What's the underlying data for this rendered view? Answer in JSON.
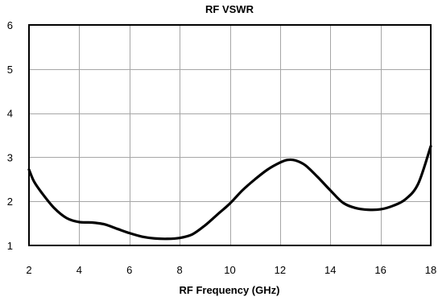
{
  "chart_data": {
    "type": "line",
    "title": "RF VSWR",
    "xlabel": "RF Frequency (GHz)",
    "ylabel": "",
    "xlim": [
      2,
      18
    ],
    "ylim": [
      1,
      6
    ],
    "xticks": [
      2,
      4,
      6,
      8,
      10,
      12,
      14,
      16,
      18
    ],
    "yticks": [
      1,
      2,
      3,
      4,
      5,
      6
    ],
    "grid": true,
    "legend": "none",
    "line_color": "#000000",
    "grid_color": "#a6a6a6",
    "series": [
      {
        "x": [
          2.0,
          2.2,
          2.5,
          3.0,
          3.5,
          4.0,
          4.5,
          5.0,
          5.5,
          6.0,
          6.5,
          7.0,
          7.5,
          8.0,
          8.5,
          9.0,
          9.5,
          10.0,
          10.5,
          11.0,
          11.5,
          12.0,
          12.3,
          12.6,
          13.0,
          13.5,
          14.0,
          14.5,
          15.0,
          15.5,
          16.0,
          16.5,
          17.0,
          17.5,
          18.0
        ],
        "y": [
          2.72,
          2.45,
          2.2,
          1.85,
          1.62,
          1.53,
          1.52,
          1.48,
          1.38,
          1.28,
          1.2,
          1.16,
          1.15,
          1.17,
          1.25,
          1.45,
          1.7,
          1.95,
          2.25,
          2.5,
          2.72,
          2.88,
          2.94,
          2.93,
          2.82,
          2.55,
          2.25,
          1.97,
          1.85,
          1.81,
          1.82,
          1.9,
          2.05,
          2.4,
          3.25
        ]
      }
    ]
  }
}
